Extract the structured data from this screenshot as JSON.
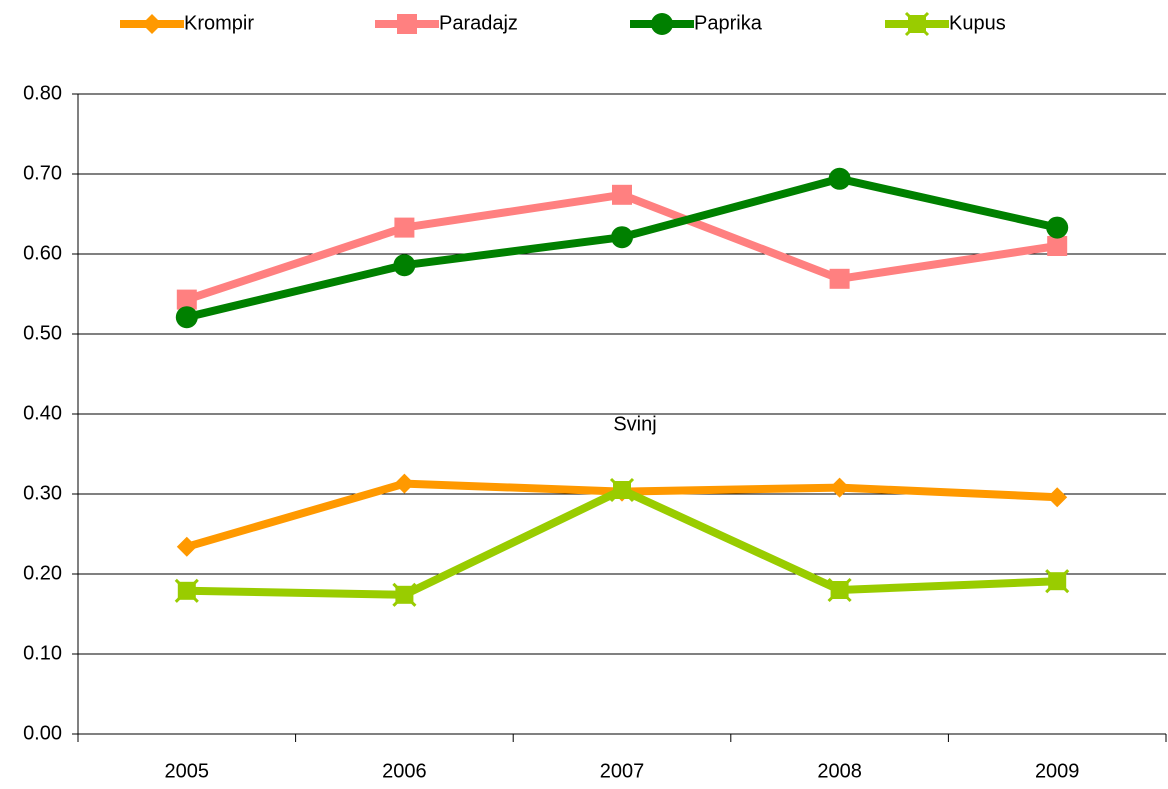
{
  "chart_data": {
    "type": "line",
    "categories": [
      "2005",
      "2006",
      "2007",
      "2008",
      "2009"
    ],
    "series": [
      {
        "name": "Krompir",
        "color": "#ff9900",
        "marker": "diamond",
        "values": [
          0.234,
          0.313,
          0.303,
          0.308,
          0.296
        ]
      },
      {
        "name": "Paradajz",
        "color": "#ff8080",
        "marker": "square",
        "values": [
          0.543,
          0.633,
          0.674,
          0.569,
          0.61
        ]
      },
      {
        "name": "Paprika",
        "color": "#008000",
        "marker": "circle",
        "values": [
          0.521,
          0.586,
          0.621,
          0.694,
          0.633
        ]
      },
      {
        "name": "Kupus",
        "color": "#99cc00",
        "marker": "xsquare",
        "values": [
          0.179,
          0.174,
          0.305,
          0.18,
          0.191
        ]
      }
    ],
    "annotation": "Svinj",
    "ylim": [
      0,
      0.8
    ],
    "yticks": [
      {
        "value": 0,
        "label": "0.00"
      },
      {
        "value": 0.1,
        "label": "0.10"
      },
      {
        "value": 0.2,
        "label": "0.20"
      },
      {
        "value": 0.3,
        "label": "0.30"
      },
      {
        "value": 0.4,
        "label": "0.40"
      },
      {
        "value": 0.5,
        "label": "0.50"
      },
      {
        "value": 0.6,
        "label": "0.60"
      },
      {
        "value": 0.7,
        "label": "0.70"
      },
      {
        "value": 0.8,
        "label": "0.80"
      }
    ],
    "grid": true,
    "legend": "top"
  }
}
